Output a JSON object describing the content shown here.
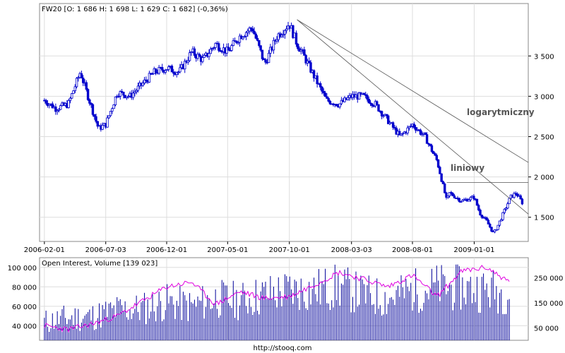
{
  "chart_data": [
    {
      "type": "candlestick",
      "title": "FW20 [O: 1 686  H: 1 698  L: 1 629  C: 1 682] (-0,36%)",
      "ylim": [
        1200,
        4150
      ],
      "yticks": [
        1500,
        2000,
        2500,
        3000,
        3500
      ],
      "ytick_labels": [
        "1 500",
        "2 000",
        "2 500",
        "3 000",
        "3 500"
      ],
      "xlim": [
        "2006-01-20",
        "2009-05-15"
      ],
      "xticks": [
        "2006-02-01",
        "2006-07-03",
        "2006-12-01",
        "2007-05-01",
        "2007-10-01",
        "2008-03-03",
        "2008-08-01",
        "2009-01-01"
      ],
      "grid": true,
      "series": [
        {
          "x": [
            "2006-02-01",
            "2006-03-01",
            "2006-04-01",
            "2006-05-01",
            "2006-05-20",
            "2006-06-15",
            "2006-07-03",
            "2006-08-01",
            "2006-09-01",
            "2006-10-01",
            "2006-11-01",
            "2006-12-01",
            "2007-01-01",
            "2007-02-01",
            "2007-03-01",
            "2007-04-01",
            "2007-05-01",
            "2007-06-01",
            "2007-07-01",
            "2007-08-01",
            "2007-09-01",
            "2007-10-01",
            "2007-10-20",
            "2007-11-01",
            "2007-12-01",
            "2008-01-01",
            "2008-02-01",
            "2008-03-03",
            "2008-04-01",
            "2008-05-01",
            "2008-06-01",
            "2008-07-01",
            "2008-08-01",
            "2008-09-01",
            "2008-10-01",
            "2008-10-25",
            "2008-11-01",
            "2008-12-01",
            "2009-01-01",
            "2009-01-15",
            "2009-02-01",
            "2009-02-18",
            "2009-03-01",
            "2009-04-01",
            "2009-04-15",
            "2009-04-30"
          ],
          "close": [
            2950,
            2850,
            2900,
            3300,
            3000,
            2600,
            2650,
            3050,
            3000,
            3150,
            3300,
            3350,
            3300,
            3550,
            3450,
            3650,
            3550,
            3750,
            3850,
            3400,
            3750,
            3900,
            3650,
            3550,
            3250,
            2950,
            2900,
            3000,
            3000,
            2900,
            2700,
            2500,
            2650,
            2500,
            2200,
            1700,
            1800,
            1700,
            1750,
            1550,
            1450,
            1300,
            1400,
            1750,
            1800,
            1682
          ]
        }
      ]
    },
    {
      "type": "bar",
      "title": "Open Interest, Volume [139 023]",
      "left_yticks": [
        40000,
        60000,
        80000,
        100000
      ],
      "left_ytick_labels": [
        "40 000",
        "60 000",
        "80 000",
        "100 000"
      ],
      "right_yticks": [
        50000,
        150000,
        250000
      ],
      "right_ytick_labels": [
        "50 000",
        "150 000",
        "250 000"
      ],
      "series": [
        {
          "name": "Volume",
          "x": [
            "2006-02-01",
            "2006-04-01",
            "2006-06-01",
            "2006-08-01",
            "2006-10-01",
            "2006-12-01",
            "2007-02-01",
            "2007-04-01",
            "2007-06-01",
            "2007-08-01",
            "2007-10-01",
            "2007-12-01",
            "2008-02-01",
            "2008-04-01",
            "2008-06-01",
            "2008-08-01",
            "2008-10-01",
            "2008-12-01",
            "2009-02-01",
            "2009-04-01"
          ],
          "values": [
            55000,
            60000,
            62000,
            70000,
            72000,
            80000,
            75000,
            85000,
            82000,
            90000,
            95000,
            96000,
            100000,
            90000,
            85000,
            95000,
            100000,
            98000,
            96000,
            92000
          ]
        },
        {
          "name": "Open Interest",
          "x": [
            "2006-02-01",
            "2006-04-01",
            "2006-06-01",
            "2006-08-01",
            "2006-10-01",
            "2006-12-01",
            "2007-02-01",
            "2007-04-01",
            "2007-06-01",
            "2007-08-01",
            "2007-10-01",
            "2007-12-01",
            "2008-02-01",
            "2008-04-01",
            "2008-06-01",
            "2008-08-01",
            "2008-10-01",
            "2008-12-01",
            "2009-02-01",
            "2009-04-01"
          ],
          "values": [
            40000,
            36000,
            42000,
            50000,
            65000,
            80000,
            85000,
            62000,
            75000,
            68000,
            70000,
            82000,
            95000,
            88000,
            80000,
            92000,
            70000,
            96000,
            100000,
            84000
          ]
        }
      ]
    }
  ],
  "annotations": {
    "log_label": "logarytmiczny",
    "lin_label": "liniowy",
    "source": "http://stooq.com"
  },
  "colors": {
    "candle": "#0000cc",
    "oi_line": "#e000e0",
    "volume_bar": "#000099",
    "grid": "#dddddd",
    "trendline": "#555555"
  }
}
